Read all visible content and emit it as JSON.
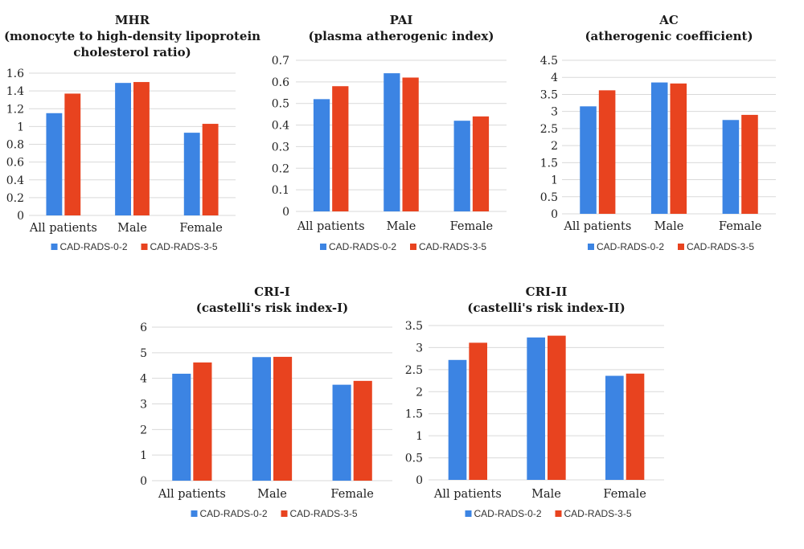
{
  "colors": {
    "series_a": "#3c84e3",
    "series_b": "#e8431f",
    "grid": "#d9d9d9"
  },
  "chart_data": [
    {
      "type": "bar",
      "title": [
        "MHR",
        "(monocyte to high-density lipoprotein",
        "cholesterol ratio)"
      ],
      "categories": [
        "All patients",
        "Male",
        "Female"
      ],
      "series": [
        {
          "name": "CAD-RADS-0-2",
          "values": [
            1.15,
            1.49,
            0.93
          ]
        },
        {
          "name": "CAD-RADS-3-5",
          "values": [
            1.37,
            1.5,
            1.03
          ]
        }
      ],
      "yticks": [
        "0",
        "0.2",
        "0.4",
        "0.6",
        "0.8",
        "1",
        "1.2",
        "1.4",
        "1.6"
      ],
      "ylim": [
        0,
        1.6
      ],
      "grid": true,
      "legend": "bottom"
    },
    {
      "type": "bar",
      "title": [
        "PAI",
        "(plasma atherogenic index)"
      ],
      "categories": [
        "All patients",
        "Male",
        "Female"
      ],
      "series": [
        {
          "name": "CAD-RADS-0-2",
          "values": [
            0.52,
            0.64,
            0.42
          ]
        },
        {
          "name": "CAD-RADS-3-5",
          "values": [
            0.58,
            0.62,
            0.44
          ]
        }
      ],
      "yticks": [
        "0",
        "0.1",
        "0.2",
        "0.3",
        "0.4",
        "0.5",
        "0.6",
        "0.7"
      ],
      "ylim": [
        0,
        0.7
      ],
      "grid": true,
      "legend": "bottom"
    },
    {
      "type": "bar",
      "title": [
        "AC",
        "(atherogenic coefficient)"
      ],
      "categories": [
        "All patients",
        "Male",
        "Female"
      ],
      "series": [
        {
          "name": "CAD-RADS-0-2",
          "values": [
            3.15,
            3.85,
            2.75
          ]
        },
        {
          "name": "CAD-RADS-3-5",
          "values": [
            3.62,
            3.82,
            2.9
          ]
        }
      ],
      "yticks": [
        "0",
        "0.5",
        "1",
        "1.5",
        "2",
        "2.5",
        "3",
        "3.5",
        "4",
        "4.5"
      ],
      "ylim": [
        0,
        4.5
      ],
      "grid": true,
      "legend": "bottom"
    },
    {
      "type": "bar",
      "title": [
        "CRI-I",
        "(castelli's risk index-I)"
      ],
      "categories": [
        "All patients",
        "Male",
        "Female"
      ],
      "series": [
        {
          "name": "CAD-RADS-0-2",
          "values": [
            4.18,
            4.83,
            3.75
          ]
        },
        {
          "name": "CAD-RADS-3-5",
          "values": [
            4.62,
            4.84,
            3.9
          ]
        }
      ],
      "yticks": [
        "0",
        "1",
        "2",
        "3",
        "4",
        "5",
        "6"
      ],
      "ylim": [
        0,
        6
      ],
      "grid": true,
      "legend": "bottom"
    },
    {
      "type": "bar",
      "title": [
        "CRI-II",
        "(castelli's risk index-II)"
      ],
      "categories": [
        "All patients",
        "Male",
        "Female"
      ],
      "series": [
        {
          "name": "CAD-RADS-0-2",
          "values": [
            2.72,
            3.23,
            2.36
          ]
        },
        {
          "name": "CAD-RADS-3-5",
          "values": [
            3.11,
            3.27,
            2.41
          ]
        }
      ],
      "yticks": [
        "0",
        "0.5",
        "1",
        "1.5",
        "2",
        "2.5",
        "3",
        "3.5"
      ],
      "ylim": [
        0,
        3.5
      ],
      "grid": true,
      "legend": "bottom"
    }
  ]
}
